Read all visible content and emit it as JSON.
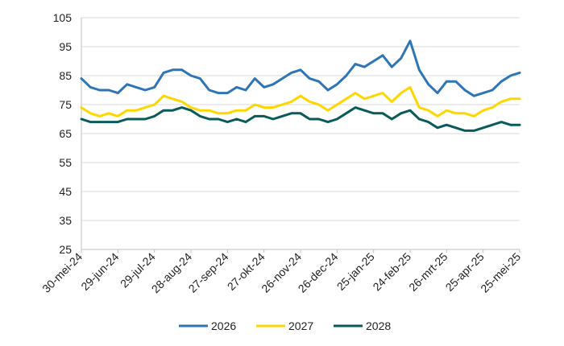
{
  "chart_data": {
    "type": "line",
    "title": "",
    "xlabel": "",
    "ylabel": "",
    "ylim": [
      25,
      105
    ],
    "yticks": [
      25,
      35,
      45,
      55,
      65,
      75,
      85,
      95,
      105
    ],
    "grid": "horizontal",
    "legend_position": "bottom",
    "x_tick_labels": [
      "30-mei-24",
      "29-jun-24",
      "29-jul-24",
      "28-aug-24",
      "27-sep-24",
      "27-okt-24",
      "26-nov-24",
      "26-dec-24",
      "25-jan-25",
      "24-feb-25",
      "26-mrt-25",
      "25-apr-25",
      "25-mei-25"
    ],
    "x": [
      "30-mei-24",
      "06-jun-24",
      "13-jun-24",
      "20-jun-24",
      "29-jun-24",
      "06-jul-24",
      "13-jul-24",
      "20-jul-24",
      "29-jul-24",
      "05-aug-24",
      "12-aug-24",
      "19-aug-24",
      "28-aug-24",
      "04-sep-24",
      "11-sep-24",
      "18-sep-24",
      "27-sep-24",
      "04-okt-24",
      "11-okt-24",
      "18-okt-24",
      "27-okt-24",
      "03-nov-24",
      "10-nov-24",
      "17-nov-24",
      "26-nov-24",
      "03-dec-24",
      "10-dec-24",
      "17-dec-24",
      "26-dec-24",
      "02-jan-25",
      "09-jan-25",
      "16-jan-25",
      "25-jan-25",
      "01-feb-25",
      "08-feb-25",
      "15-feb-25",
      "24-feb-25",
      "03-mrt-25",
      "10-mrt-25",
      "17-mrt-25",
      "26-mrt-25",
      "02-apr-25",
      "09-apr-25",
      "16-apr-25",
      "25-apr-25",
      "02-mei-25",
      "09-mei-25",
      "16-mei-25",
      "25-mei-25"
    ],
    "series": [
      {
        "name": "2026",
        "color": "#2e75b6",
        "values": [
          84,
          81,
          80,
          80,
          79,
          82,
          81,
          80,
          81,
          86,
          87,
          87,
          85,
          84,
          80,
          79,
          79,
          81,
          80,
          84,
          81,
          82,
          84,
          86,
          87,
          84,
          83,
          80,
          82,
          85,
          89,
          88,
          90,
          92,
          88,
          91,
          97,
          87,
          82,
          79,
          83,
          83,
          80,
          78,
          79,
          80,
          83,
          85,
          86
        ]
      },
      {
        "name": "2027",
        "color": "#ffd700",
        "values": [
          74,
          72,
          71,
          72,
          71,
          73,
          73,
          74,
          75,
          78,
          77,
          76,
          74,
          73,
          73,
          72,
          72,
          73,
          73,
          75,
          74,
          74,
          75,
          76,
          78,
          76,
          75,
          73,
          75,
          77,
          79,
          77,
          78,
          79,
          76,
          79,
          81,
          74,
          73,
          71,
          73,
          72,
          72,
          71,
          73,
          74,
          76,
          77,
          77
        ]
      },
      {
        "name": "2028",
        "color": "#0b5a5a",
        "values": [
          70,
          69,
          69,
          69,
          69,
          70,
          70,
          70,
          71,
          73,
          73,
          74,
          73,
          71,
          70,
          70,
          69,
          70,
          69,
          71,
          71,
          70,
          71,
          72,
          72,
          70,
          70,
          69,
          70,
          72,
          74,
          73,
          72,
          72,
          70,
          72,
          73,
          70,
          69,
          67,
          68,
          67,
          66,
          66,
          67,
          68,
          69,
          68,
          68
        ]
      }
    ]
  }
}
